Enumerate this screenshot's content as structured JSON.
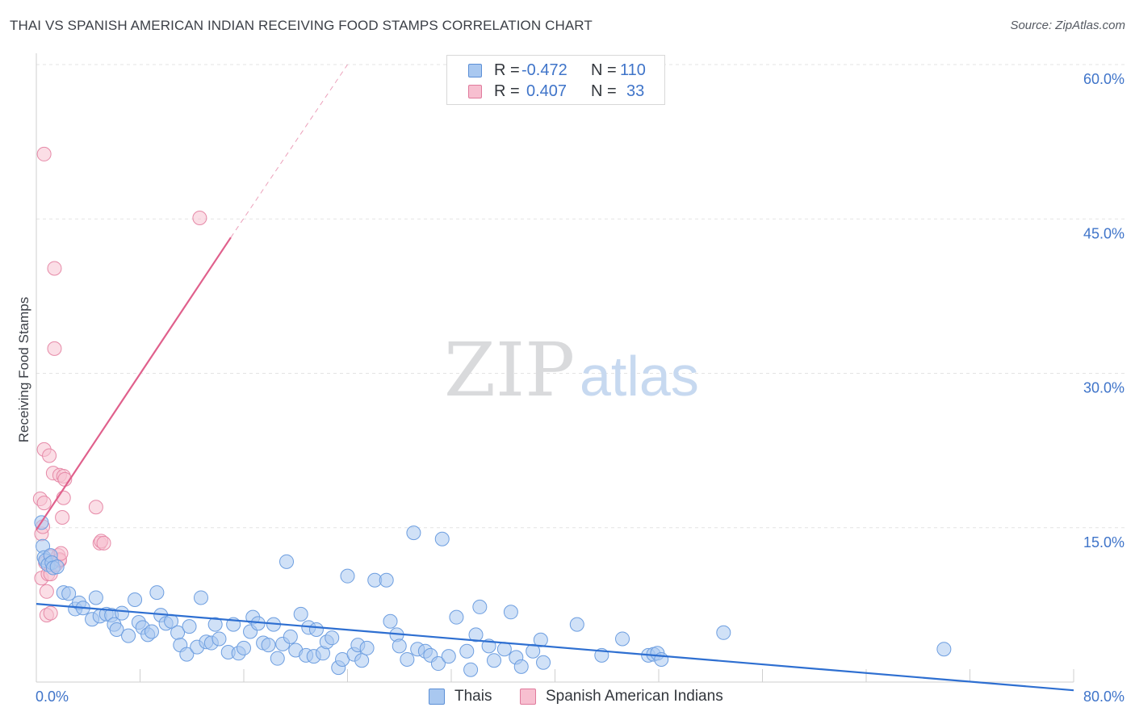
{
  "header": {
    "title": "THAI VS SPANISH AMERICAN INDIAN RECEIVING FOOD STAMPS CORRELATION CHART",
    "source": "Source: ZipAtlas.com"
  },
  "watermark": {
    "zip": "ZIP",
    "atlas": "atlas"
  },
  "legend": {
    "rows": [
      {
        "r_label": "R =",
        "r_value": "-0.472",
        "n_label": "N =",
        "n_value": "110",
        "color": "#a9c8f0",
        "border": "#5b8fd6"
      },
      {
        "r_label": "R =",
        "r_value": "0.407",
        "n_label": "N =",
        "n_value": "33",
        "color": "#f7bfd0",
        "border": "#e07a9c"
      }
    ]
  },
  "bottom_legend": {
    "items": [
      {
        "label": "Thais",
        "color": "#a9c8f0",
        "border": "#5b8fd6"
      },
      {
        "label": "Spanish American Indians",
        "color": "#f7bfd0",
        "border": "#e07a9c"
      }
    ]
  },
  "colors": {
    "blue_fill": "#a9c8f0",
    "blue_stroke": "#6d9ee0",
    "blue_line": "#2e6fd1",
    "pink_fill": "#f7c3d2",
    "pink_stroke": "#e68aa8",
    "pink_line": "#e0608c",
    "grid": "#e3e3e3"
  },
  "chart_data": {
    "type": "scatter",
    "title": "THAI VS SPANISH AMERICAN INDIAN RECEIVING FOOD STAMPS CORRELATION CHART",
    "xlabel": "",
    "ylabel": "Receiving Food Stamps",
    "xlim": [
      0,
      80
    ],
    "ylim": [
      0,
      60
    ],
    "x_tick_labels": [
      "0.0%",
      "80.0%"
    ],
    "y_tick_labels": [
      "15.0%",
      "30.0%",
      "45.0%",
      "60.0%"
    ],
    "y_ticks": [
      15,
      30,
      45,
      60
    ],
    "grid": true,
    "series": [
      {
        "name": "Thais",
        "r": -0.472,
        "n": 110,
        "trend": {
          "x": [
            0,
            80
          ],
          "y": [
            7.6,
            -0.8
          ]
        },
        "points": [
          [
            0.4,
            15.5
          ],
          [
            0.5,
            13.2
          ],
          [
            0.6,
            12.1
          ],
          [
            0.7,
            11.8
          ],
          [
            0.9,
            11.4
          ],
          [
            1.1,
            12.3
          ],
          [
            1.2,
            11.6
          ],
          [
            1.3,
            11.1
          ],
          [
            1.6,
            11.2
          ],
          [
            2.1,
            8.7
          ],
          [
            2.5,
            8.6
          ],
          [
            3.0,
            7.1
          ],
          [
            3.3,
            7.7
          ],
          [
            3.6,
            7.2
          ],
          [
            4.3,
            6.1
          ],
          [
            4.6,
            8.2
          ],
          [
            4.9,
            6.4
          ],
          [
            5.4,
            6.6
          ],
          [
            5.8,
            6.5
          ],
          [
            6.0,
            5.6
          ],
          [
            6.2,
            5.1
          ],
          [
            6.6,
            6.7
          ],
          [
            7.1,
            4.5
          ],
          [
            7.6,
            8.0
          ],
          [
            7.9,
            5.8
          ],
          [
            8.2,
            5.3
          ],
          [
            8.6,
            4.6
          ],
          [
            8.9,
            4.9
          ],
          [
            9.3,
            8.7
          ],
          [
            9.6,
            6.5
          ],
          [
            10.0,
            5.7
          ],
          [
            10.4,
            5.9
          ],
          [
            10.9,
            4.8
          ],
          [
            11.1,
            3.6
          ],
          [
            11.6,
            2.7
          ],
          [
            11.8,
            5.4
          ],
          [
            12.4,
            3.4
          ],
          [
            12.7,
            8.2
          ],
          [
            13.1,
            3.9
          ],
          [
            13.5,
            3.8
          ],
          [
            13.8,
            5.6
          ],
          [
            14.1,
            4.2
          ],
          [
            14.8,
            2.9
          ],
          [
            15.2,
            5.6
          ],
          [
            15.6,
            2.8
          ],
          [
            16.0,
            3.3
          ],
          [
            16.5,
            4.9
          ],
          [
            16.7,
            6.3
          ],
          [
            17.1,
            5.7
          ],
          [
            17.5,
            3.8
          ],
          [
            17.9,
            3.6
          ],
          [
            18.3,
            5.6
          ],
          [
            18.6,
            2.3
          ],
          [
            19.0,
            3.7
          ],
          [
            19.3,
            11.7
          ],
          [
            19.6,
            4.4
          ],
          [
            20.0,
            3.1
          ],
          [
            20.4,
            6.6
          ],
          [
            20.8,
            2.6
          ],
          [
            21.0,
            5.3
          ],
          [
            21.4,
            2.5
          ],
          [
            21.6,
            5.1
          ],
          [
            22.1,
            2.8
          ],
          [
            22.4,
            3.9
          ],
          [
            22.8,
            4.3
          ],
          [
            23.3,
            1.4
          ],
          [
            23.6,
            2.2
          ],
          [
            24.0,
            10.3
          ],
          [
            24.5,
            2.7
          ],
          [
            24.8,
            3.6
          ],
          [
            25.1,
            2.1
          ],
          [
            25.5,
            3.3
          ],
          [
            26.1,
            9.9
          ],
          [
            27.0,
            9.9
          ],
          [
            27.3,
            5.9
          ],
          [
            27.8,
            4.6
          ],
          [
            28.0,
            3.5
          ],
          [
            28.6,
            2.2
          ],
          [
            29.1,
            14.5
          ],
          [
            29.4,
            3.2
          ],
          [
            30.0,
            3.0
          ],
          [
            30.4,
            2.6
          ],
          [
            31.0,
            1.8
          ],
          [
            31.3,
            13.9
          ],
          [
            31.8,
            2.5
          ],
          [
            32.4,
            6.3
          ],
          [
            33.2,
            3.0
          ],
          [
            33.5,
            1.2
          ],
          [
            33.9,
            4.6
          ],
          [
            34.2,
            7.3
          ],
          [
            34.9,
            3.5
          ],
          [
            35.3,
            2.1
          ],
          [
            36.1,
            3.2
          ],
          [
            36.6,
            6.8
          ],
          [
            37.0,
            2.4
          ],
          [
            37.4,
            1.5
          ],
          [
            38.3,
            3.0
          ],
          [
            38.9,
            4.1
          ],
          [
            39.1,
            1.9
          ],
          [
            41.7,
            5.6
          ],
          [
            43.6,
            2.6
          ],
          [
            45.2,
            4.2
          ],
          [
            47.2,
            2.6
          ],
          [
            47.6,
            2.7
          ],
          [
            47.9,
            2.8
          ],
          [
            48.2,
            2.2
          ],
          [
            53.0,
            4.8
          ],
          [
            70.0,
            3.2
          ]
        ]
      },
      {
        "name": "Spanish American Indians",
        "r": 0.407,
        "n": 33,
        "trend": {
          "x": [
            0,
            15
          ],
          "y": [
            14.8,
            43.2
          ]
        },
        "trend_dashed": {
          "x": [
            15,
            24
          ],
          "y": [
            43.2,
            60.0
          ]
        },
        "points": [
          [
            0.3,
            17.8
          ],
          [
            0.4,
            14.4
          ],
          [
            0.4,
            10.1
          ],
          [
            0.5,
            15.1
          ],
          [
            0.6,
            51.3
          ],
          [
            0.6,
            22.6
          ],
          [
            0.6,
            17.4
          ],
          [
            0.7,
            11.6
          ],
          [
            0.8,
            8.8
          ],
          [
            0.8,
            6.5
          ],
          [
            0.9,
            10.5
          ],
          [
            1.0,
            22.0
          ],
          [
            1.1,
            12.2
          ],
          [
            1.1,
            6.7
          ],
          [
            1.1,
            10.5
          ],
          [
            1.3,
            20.3
          ],
          [
            1.4,
            40.2
          ],
          [
            1.4,
            32.4
          ],
          [
            1.5,
            11.4
          ],
          [
            1.7,
            12.3
          ],
          [
            1.8,
            11.8
          ],
          [
            1.8,
            11.9
          ],
          [
            1.8,
            20.1
          ],
          [
            1.9,
            12.5
          ],
          [
            2.0,
            16.0
          ],
          [
            2.1,
            17.9
          ],
          [
            2.1,
            20.0
          ],
          [
            2.2,
            19.7
          ],
          [
            4.6,
            17.0
          ],
          [
            4.9,
            13.5
          ],
          [
            5.0,
            13.7
          ],
          [
            5.2,
            13.5
          ],
          [
            12.6,
            45.1
          ]
        ]
      }
    ]
  }
}
